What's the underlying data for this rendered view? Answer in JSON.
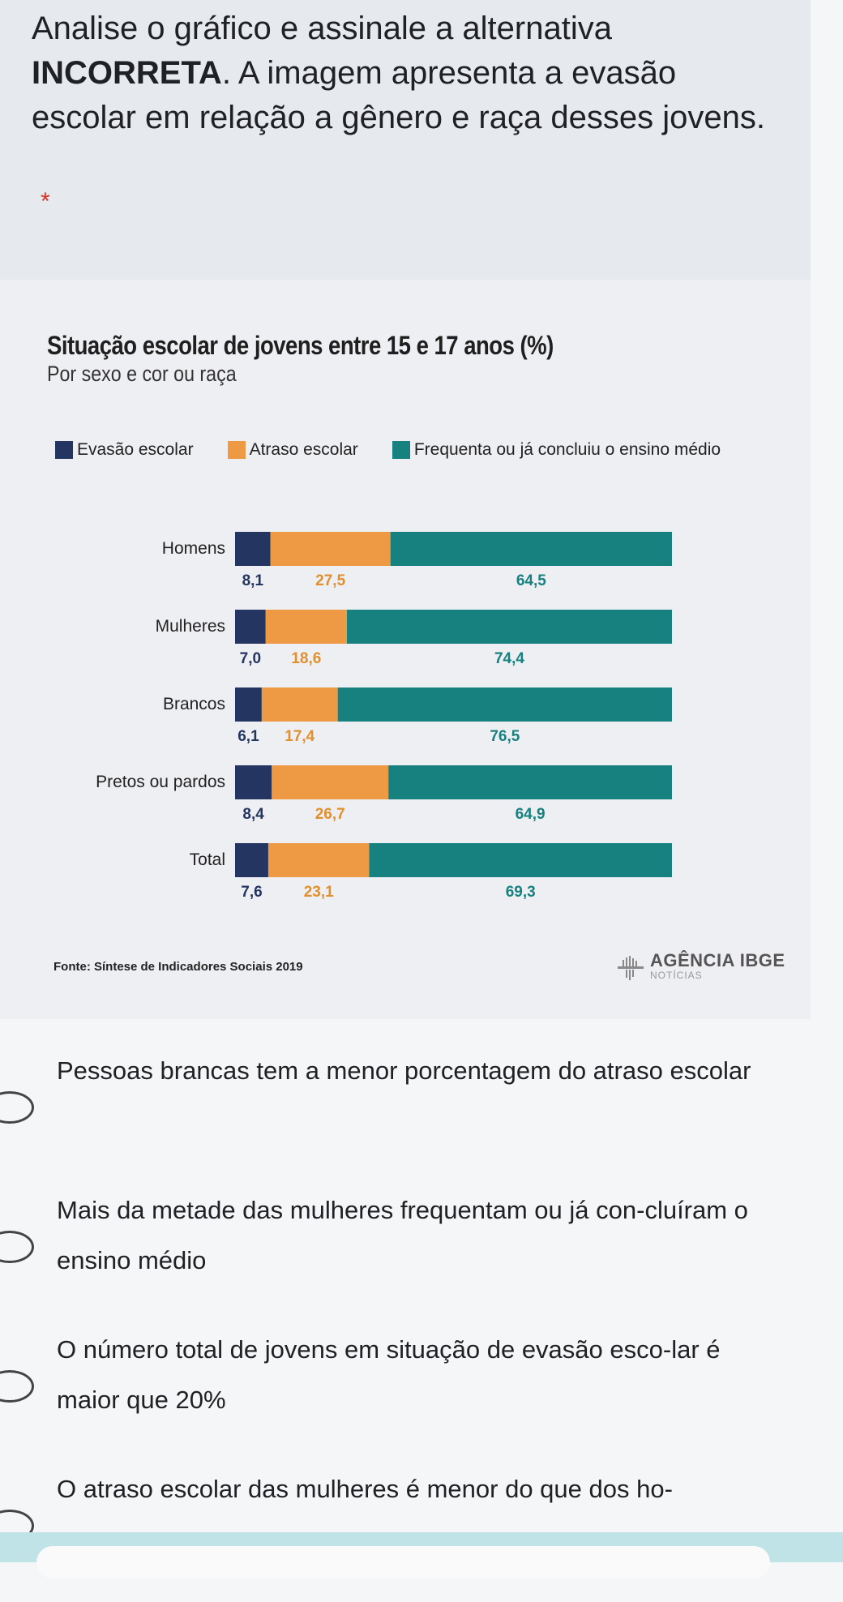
{
  "question": {
    "text_before_bold": "Analise o gráfico e assinale a alternativa ",
    "bold": "INCORRETA",
    "text_after_bold": ". A imagem apresenta a evasão escolar em relação a gênero e raça desses jovens.",
    "required_mark": "*"
  },
  "chart_data": {
    "type": "bar",
    "orientation": "horizontal",
    "stacked": true,
    "title": "Situação escolar de jovens entre 15 e 17 anos (%)",
    "subtitle": "Por sexo e cor ou raça",
    "categories": [
      "Homens",
      "Mulheres",
      "Brancos",
      "Pretos ou pardos",
      "Total"
    ],
    "series": [
      {
        "name": "Evasão escolar",
        "color": "#253561",
        "values": [
          8.1,
          7.0,
          6.1,
          8.4,
          7.6
        ],
        "labels": [
          "8,1",
          "7,0",
          "6,1",
          "8,4",
          "7,6"
        ],
        "label_color": "#253561"
      },
      {
        "name": "Atraso escolar",
        "color": "#ee9a45",
        "values": [
          27.5,
          18.6,
          17.4,
          26.7,
          23.1
        ],
        "labels": [
          "27,5",
          "18,6",
          "17,4",
          "26,7",
          "23,1"
        ],
        "label_color": "#e0902f"
      },
      {
        "name": "Frequenta ou já concluiu o ensino médio",
        "color": "#17817f",
        "values": [
          64.5,
          74.4,
          76.5,
          64.9,
          69.3
        ],
        "labels": [
          "64,5",
          "74,4",
          "76,5",
          "64,9",
          "69,3"
        ],
        "label_color": "#17817f"
      }
    ],
    "xlim": [
      0,
      100
    ],
    "legend": "top",
    "grid": false,
    "source": "Fonte: Síntese de Indicadores Sociais 2019",
    "logo_main": "AGÊNCIA IBGE",
    "logo_sub": "NOTÍCIAS"
  },
  "options": [
    {
      "text": "Pessoas brancas tem a menor porcentagem do atraso escolar"
    },
    {
      "text": "Mais da metade das mulheres frequentam ou já con-cluíram o ensino médio"
    },
    {
      "text": "O número total de jovens em situação de evasão esco-lar é maior que 20%"
    },
    {
      "text": "O atraso escolar das mulheres é menor do que dos ho-"
    }
  ]
}
